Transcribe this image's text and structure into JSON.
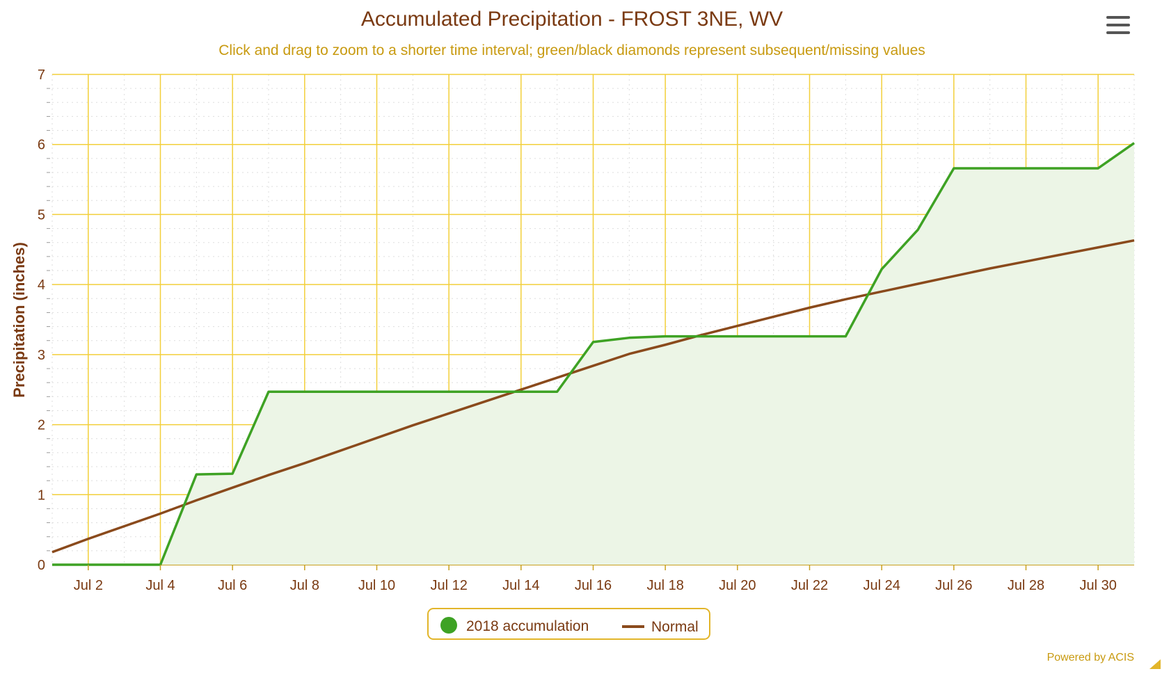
{
  "chart_data": {
    "type": "line",
    "title": "Accumulated Precipitation - FROST 3NE, WV",
    "subtitle": "Click and drag to zoom to a shorter time interval; green/black diamonds represent subsequent/missing values",
    "ylabel": "Precipitation (inches)",
    "xlabel": "",
    "ylim": [
      0,
      7
    ],
    "yticks": [
      0,
      1,
      2,
      3,
      4,
      5,
      6,
      7
    ],
    "xlim": [
      "2018-07-01",
      "2018-07-31"
    ],
    "xtick_labels": [
      "Jul 2",
      "Jul 4",
      "Jul 6",
      "Jul 8",
      "Jul 10",
      "Jul 12",
      "Jul 14",
      "Jul 16",
      "Jul 18",
      "Jul 20",
      "Jul 22",
      "Jul 24",
      "Jul 26",
      "Jul 28",
      "Jul 30"
    ],
    "x": [
      "Jul 1",
      "Jul 2",
      "Jul 3",
      "Jul 4",
      "Jul 5",
      "Jul 6",
      "Jul 7",
      "Jul 8",
      "Jul 9",
      "Jul 10",
      "Jul 11",
      "Jul 12",
      "Jul 13",
      "Jul 14",
      "Jul 15",
      "Jul 16",
      "Jul 17",
      "Jul 18",
      "Jul 19",
      "Jul 20",
      "Jul 21",
      "Jul 22",
      "Jul 23",
      "Jul 24",
      "Jul 25",
      "Jul 26",
      "Jul 27",
      "Jul 28",
      "Jul 29",
      "Jul 30",
      "Jul 31"
    ],
    "series": [
      {
        "name": "2018 accumulation",
        "color": "#3ea224",
        "fill": "#ecf5e6",
        "values": [
          0.0,
          0.0,
          0.0,
          0.0,
          1.29,
          1.3,
          2.47,
          2.47,
          2.47,
          2.47,
          2.47,
          2.47,
          2.47,
          2.47,
          2.47,
          3.18,
          3.24,
          3.26,
          3.26,
          3.26,
          3.26,
          3.26,
          3.26,
          4.22,
          4.78,
          5.66,
          5.66,
          5.66,
          5.66,
          5.66,
          6.02
        ]
      },
      {
        "name": "Normal",
        "color": "#8a4a1c",
        "values": [
          0.18,
          0.37,
          0.55,
          0.73,
          0.92,
          1.1,
          1.28,
          1.45,
          1.63,
          1.81,
          1.99,
          2.16,
          2.33,
          2.5,
          2.67,
          2.84,
          3.01,
          3.14,
          3.28,
          3.41,
          3.54,
          3.67,
          3.79,
          3.9,
          4.01,
          4.12,
          4.23,
          4.33,
          4.43,
          4.53,
          4.63
        ]
      }
    ],
    "grid": true,
    "grid_color": "#f2cf3a",
    "legend_position": "bottom-center",
    "credit": "Powered by ACIS"
  },
  "icons": {
    "menu": "hamburger-menu-icon",
    "resize": "resize-handle-icon"
  }
}
